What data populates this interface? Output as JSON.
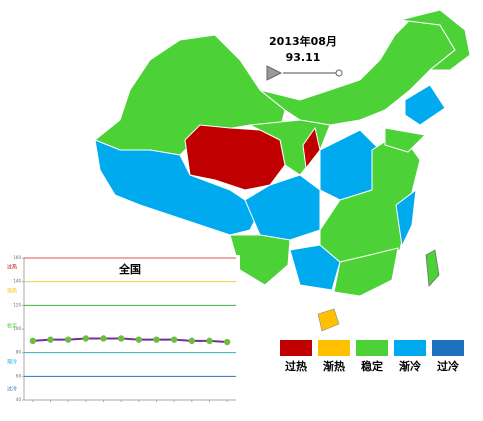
{
  "map": {
    "date": "2013年08月",
    "value": "93.11",
    "legend": [
      {
        "label": "过热",
        "color": "#c00000"
      },
      {
        "label": "渐热",
        "color": "#ffc000"
      },
      {
        "label": "稳定",
        "color": "#4cd137"
      },
      {
        "label": "渐冷",
        "color": "#00aaee"
      },
      {
        "label": "过冷",
        "color": "#1f6fbf"
      }
    ]
  },
  "chart_data": {
    "type": "line",
    "title": "全国",
    "categories": [
      null,
      null,
      null,
      null,
      null,
      null,
      null,
      null,
      null,
      null,
      null,
      null
    ],
    "series": [
      {
        "color": "#7030a0",
        "marker_color": "#6cbf3c",
        "values": [
          90,
          91,
          91,
          92,
          92,
          92,
          91,
          91,
          91,
          90,
          90,
          89
        ]
      }
    ],
    "ylim": [
      40,
      160
    ],
    "yticks": [
      40,
      60,
      80,
      100,
      120,
      140,
      160
    ],
    "reference_lines": [
      {
        "value": 160,
        "color": "#e05050"
      },
      {
        "value": 140,
        "color": "#e8d040"
      },
      {
        "value": 120,
        "color": "#40b040"
      },
      {
        "value": 80,
        "color": "#30b0c0"
      },
      {
        "value": 60,
        "color": "#3070c0"
      }
    ],
    "zone_labels": [
      "过热",
      "渐热",
      "稳定",
      "渐冷",
      "过冷"
    ]
  }
}
